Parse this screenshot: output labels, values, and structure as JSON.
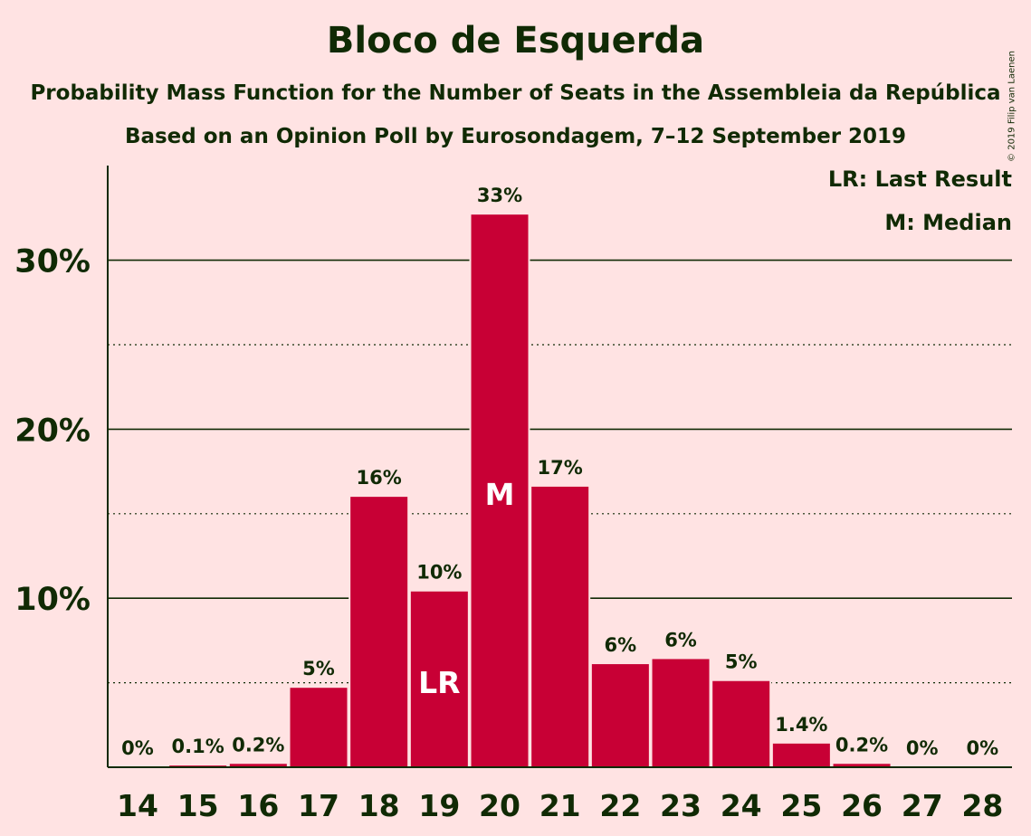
{
  "chart_data": {
    "type": "bar",
    "title": "Bloco de Esquerda",
    "subtitle": "Probability Mass Function for the Number of Seats in the Assembleia da República",
    "subtitle2": "Based on an Opinion Poll by Eurosondagem, 7–12 September 2019",
    "copyright": "© 2019 Filip van Laenen",
    "legend": {
      "placement": "top-right",
      "last_result": "LR: Last Result",
      "median": "M: Median"
    },
    "categories": [
      "14",
      "15",
      "16",
      "17",
      "18",
      "19",
      "20",
      "21",
      "22",
      "23",
      "24",
      "25",
      "26",
      "27",
      "28"
    ],
    "values": [
      0,
      0.1,
      0.2,
      4.7,
      16,
      10.4,
      32.7,
      16.6,
      6.1,
      6.4,
      5.1,
      1.4,
      0.2,
      0,
      0
    ],
    "value_labels": [
      "0%",
      "0.1%",
      "0.2%",
      "5%",
      "16%",
      "10%",
      "33%",
      "17%",
      "6%",
      "6%",
      "5%",
      "1.4%",
      "0.2%",
      "0%",
      "0%"
    ],
    "markers": [
      {
        "category": "19",
        "label": "LR"
      },
      {
        "category": "20",
        "label": "M"
      }
    ],
    "ylim": [
      0,
      35.6
    ],
    "yticks": [
      10,
      20,
      30
    ],
    "ytick_labels": [
      "10%",
      "20%",
      "30%"
    ],
    "minor_gridlines": [
      5,
      15,
      25
    ],
    "grid": true,
    "bar_color": "#c80035",
    "text_color": "#102a04",
    "background": "#ffe3e3"
  }
}
